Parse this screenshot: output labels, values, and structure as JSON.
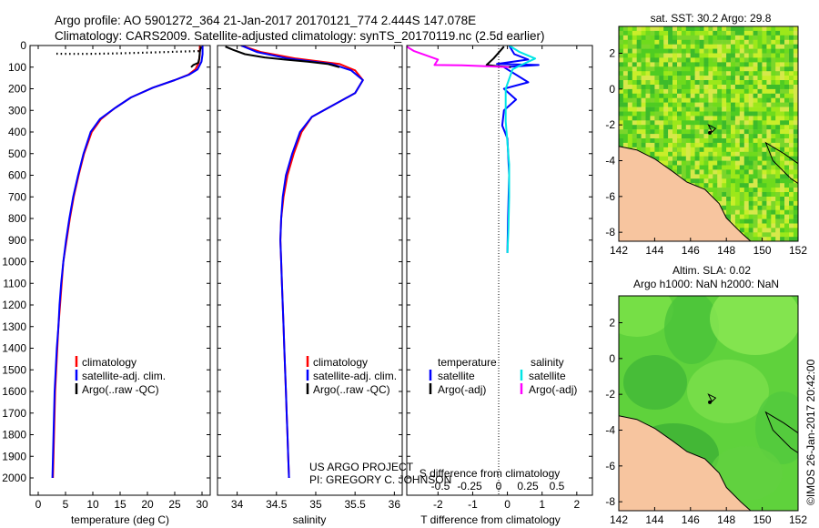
{
  "header": {
    "line1": "Argo profile: AO 5901272_364 21-Jan-2017 20170121_774 2.444S 147.078E",
    "line2": "Climatology: CARS2009. Satellite-adjusted climatology: synTS_20170119.nc (2.5d earlier)"
  },
  "credits": {
    "project": "US ARGO PROJECT",
    "pi": "PI: GREGORY C. JOHNSON",
    "stamp": "©IMOS 26-Jan-2017 20:42:00"
  },
  "colors": {
    "climatology": "#ff0000",
    "satellite": "#0000ff",
    "argo": "#000000",
    "sal_satellite": "#00e5e5",
    "sal_argo": "#ff00ff",
    "land": "#f7c59f"
  },
  "chart_data": [
    {
      "type": "line",
      "id": "temperature",
      "xlabel": "temperature (deg C)",
      "xlim": [
        -1.5,
        31.5
      ],
      "xticks": [
        0,
        5,
        10,
        15,
        20,
        25,
        30
      ],
      "ylim": [
        0,
        2080
      ],
      "yticks": [
        0,
        100,
        200,
        300,
        400,
        500,
        600,
        700,
        800,
        900,
        1000,
        1100,
        1200,
        1300,
        1400,
        1500,
        1600,
        1700,
        1800,
        1900,
        2000
      ],
      "legend": [
        "climatology",
        "satellite-adj. clim.",
        "Argo(..raw -QC)"
      ],
      "series": [
        {
          "name": "climatology",
          "color": "#ff0000",
          "points": [
            [
              29.6,
              0
            ],
            [
              29.6,
              40
            ],
            [
              29.4,
              80
            ],
            [
              28.8,
              110
            ],
            [
              27.5,
              135
            ],
            [
              25,
              160
            ],
            [
              21,
              195
            ],
            [
              17,
              240
            ],
            [
              14,
              290
            ],
            [
              11.5,
              340
            ],
            [
              9.8,
              400
            ],
            [
              8.4,
              500
            ],
            [
              7.4,
              600
            ],
            [
              6.5,
              700
            ],
            [
              5.8,
              800
            ],
            [
              5.2,
              900
            ],
            [
              4.6,
              1000
            ],
            [
              4.3,
              1100
            ],
            [
              4,
              1200
            ],
            [
              3.7,
              1300
            ],
            [
              3.5,
              1400
            ],
            [
              3.3,
              1500
            ],
            [
              3.1,
              1600
            ],
            [
              3,
              1700
            ],
            [
              2.9,
              1800
            ],
            [
              2.8,
              1900
            ],
            [
              2.7,
              2000
            ]
          ]
        },
        {
          "name": "satellite-adj. clim.",
          "color": "#0000ff",
          "points": [
            [
              30.1,
              0
            ],
            [
              30.1,
              40
            ],
            [
              29.9,
              75
            ],
            [
              29.2,
              110
            ],
            [
              27.6,
              135
            ],
            [
              25,
              160
            ],
            [
              21,
              195
            ],
            [
              17,
              240
            ],
            [
              14,
              290
            ],
            [
              11.3,
              340
            ],
            [
              9.6,
              400
            ],
            [
              8.3,
              500
            ],
            [
              7.3,
              600
            ],
            [
              6.4,
              700
            ],
            [
              5.7,
              800
            ],
            [
              5.1,
              900
            ],
            [
              4.6,
              1000
            ],
            [
              4.2,
              1100
            ],
            [
              3.9,
              1200
            ],
            [
              3.7,
              1300
            ],
            [
              3.4,
              1400
            ],
            [
              3.2,
              1500
            ],
            [
              3,
              1600
            ],
            [
              2.9,
              1700
            ],
            [
              2.8,
              1800
            ],
            [
              2.7,
              1900
            ],
            [
              2.6,
              2000
            ]
          ]
        },
        {
          "name": "Argo(..raw -QC)",
          "color": "#000000",
          "points": [
            [
              29.8,
              5
            ],
            [
              29.6,
              30
            ],
            [
              29.5,
              60
            ],
            [
              29.3,
              80
            ],
            [
              28.4,
              90
            ],
            [
              28,
              100
            ]
          ]
        }
      ],
      "annotation": "dotted mixed-layer marker near 30 m"
    },
    {
      "type": "line",
      "id": "salinity",
      "xlabel": "salinity",
      "xlim": [
        33.75,
        36.1
      ],
      "xticks": [
        34,
        34.5,
        35,
        35.5,
        36
      ],
      "ylim": [
        0,
        2080
      ],
      "legend": [
        "climatology",
        "satellite-adj. clim.",
        "Argo(..raw -QC)"
      ],
      "series": [
        {
          "name": "climatology",
          "color": "#ff0000",
          "points": [
            [
              34.05,
              0
            ],
            [
              34.3,
              30
            ],
            [
              34.75,
              60
            ],
            [
              35.3,
              85
            ],
            [
              35.5,
              115
            ],
            [
              35.6,
              160
            ],
            [
              35.5,
              220
            ],
            [
              35.2,
              280
            ],
            [
              34.95,
              330
            ],
            [
              34.82,
              400
            ],
            [
              34.72,
              500
            ],
            [
              34.64,
              600
            ],
            [
              34.59,
              700
            ],
            [
              34.56,
              800
            ],
            [
              34.55,
              900
            ],
            [
              34.56,
              1000
            ],
            [
              34.57,
              1100
            ],
            [
              34.58,
              1200
            ],
            [
              34.59,
              1300
            ],
            [
              34.6,
              1400
            ],
            [
              34.61,
              1500
            ],
            [
              34.62,
              1600
            ],
            [
              34.63,
              1700
            ],
            [
              34.64,
              1800
            ],
            [
              34.65,
              1900
            ],
            [
              34.66,
              2000
            ]
          ]
        },
        {
          "name": "satellite-adj. clim.",
          "color": "#0000ff",
          "points": [
            [
              34.05,
              0
            ],
            [
              34.25,
              30
            ],
            [
              34.65,
              60
            ],
            [
              35.2,
              85
            ],
            [
              35.45,
              115
            ],
            [
              35.6,
              160
            ],
            [
              35.5,
              220
            ],
            [
              35.2,
              280
            ],
            [
              34.95,
              330
            ],
            [
              34.8,
              400
            ],
            [
              34.7,
              500
            ],
            [
              34.62,
              600
            ],
            [
              34.58,
              700
            ],
            [
              34.56,
              800
            ],
            [
              34.55,
              900
            ],
            [
              34.56,
              1000
            ],
            [
              34.57,
              1100
            ],
            [
              34.58,
              1200
            ],
            [
              34.59,
              1300
            ],
            [
              34.6,
              1400
            ],
            [
              34.61,
              1500
            ],
            [
              34.62,
              1600
            ],
            [
              34.63,
              1700
            ],
            [
              34.64,
              1800
            ],
            [
              34.65,
              1900
            ],
            [
              34.66,
              2000
            ]
          ]
        },
        {
          "name": "Argo(..raw -QC)",
          "color": "#000000",
          "points": [
            [
              33.85,
              5
            ],
            [
              33.95,
              20
            ],
            [
              34.1,
              40
            ],
            [
              34.35,
              55
            ],
            [
              34.6,
              65
            ],
            [
              34.9,
              75
            ],
            [
              35.15,
              85
            ],
            [
              35.3,
              100
            ]
          ]
        }
      ]
    },
    {
      "type": "line",
      "id": "difference",
      "xlabel_top": "S difference from climatology",
      "xticks_top": [
        -0.5,
        -0.25,
        0,
        0.25,
        0.5
      ],
      "xlabel": "T difference from climatology",
      "xlim": [
        -2.9,
        2.45
      ],
      "xticks": [
        -2,
        -1,
        0,
        1,
        2
      ],
      "ylim": [
        0,
        2080
      ],
      "legend_temperature": "temperature",
      "legend_salinity": "salinity",
      "legend_items": [
        "satellite",
        "Argo(-adj)",
        "satellite",
        "Argo(-adj)"
      ],
      "series": [
        {
          "name": "T satellite",
          "color": "#0000ff",
          "points": [
            [
              0.05,
              0
            ],
            [
              0.2,
              40
            ],
            [
              0.6,
              65
            ],
            [
              -0.3,
              85
            ],
            [
              0.9,
              90
            ],
            [
              -0.1,
              100
            ],
            [
              0.6,
              170
            ],
            [
              -0.1,
              200
            ],
            [
              0.25,
              250
            ],
            [
              -0.1,
              300
            ],
            [
              -0.15,
              370
            ],
            [
              0,
              430
            ],
            [
              0.05,
              600
            ],
            [
              0.02,
              800
            ],
            [
              0,
              960
            ]
          ]
        },
        {
          "name": "S satellite",
          "color": "#00e5e5",
          "points": [
            [
              0.05,
              0
            ],
            [
              0.35,
              30
            ],
            [
              0.8,
              60
            ],
            [
              0.4,
              90
            ],
            [
              0.15,
              110
            ],
            [
              -0.05,
              200
            ],
            [
              -0.05,
              350
            ],
            [
              0,
              450
            ],
            [
              0.05,
              550
            ],
            [
              0.05,
              700
            ],
            [
              0.03,
              850
            ],
            [
              0,
              960
            ]
          ]
        },
        {
          "name": "T Argo(-adj)",
          "color": "#000000",
          "points": [
            [
              -0.1,
              5
            ],
            [
              -0.4,
              60
            ],
            [
              -0.6,
              90
            ],
            [
              -0.3,
              95
            ],
            [
              0.1,
              100
            ]
          ]
        },
        {
          "name": "S Argo(-adj)",
          "color": "#ff00ff",
          "points": [
            [
              -2.9,
              5
            ],
            [
              -2.7,
              25
            ],
            [
              -2,
              65
            ],
            [
              -2.1,
              90
            ],
            [
              -1.3,
              92
            ],
            [
              0.05,
              100
            ]
          ]
        }
      ]
    },
    {
      "type": "heatmap",
      "id": "sst-map",
      "title": "sat. SST: 30.2  Argo: 29.8",
      "xlim": [
        142,
        152
      ],
      "ylim": [
        -8.5,
        3.5
      ],
      "xticks": [
        142,
        144,
        146,
        148,
        150,
        152
      ],
      "yticks": [
        2,
        0,
        -2,
        -4,
        -6,
        -8
      ],
      "argo_location": [
        147.078,
        -2.444
      ]
    },
    {
      "type": "heatmap",
      "id": "sla-map",
      "title": "Altim. SLA: 0.02",
      "subtitle": "Argo h1000: NaN h2000: NaN",
      "xlim": [
        142,
        152
      ],
      "ylim": [
        -8.5,
        3.5
      ],
      "xticks": [
        142,
        144,
        146,
        148,
        150,
        152
      ],
      "yticks": [
        2,
        0,
        -2,
        -4,
        -6,
        -8
      ],
      "argo_location": [
        147.078,
        -2.444
      ]
    }
  ]
}
